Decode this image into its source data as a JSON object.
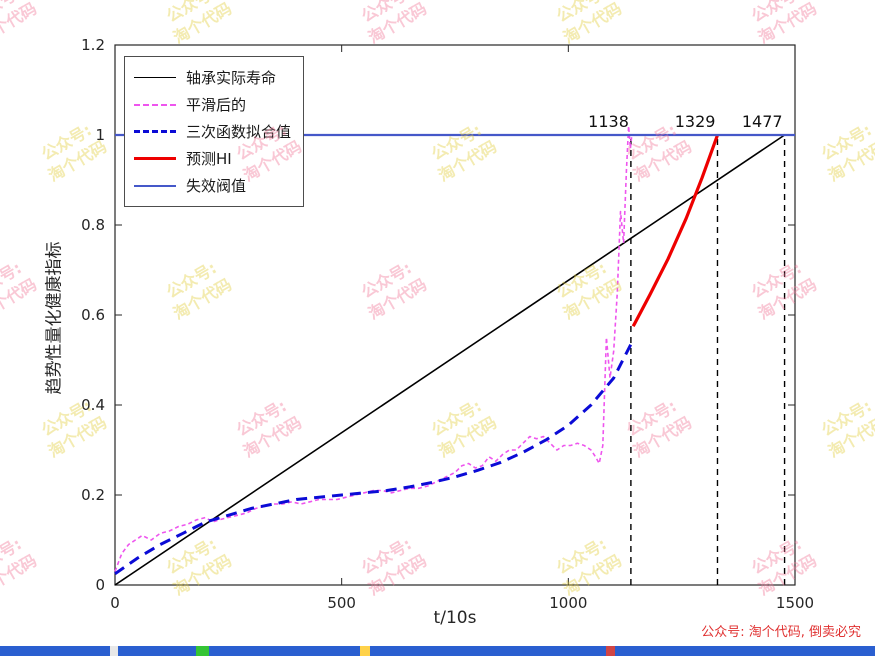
{
  "figure": {
    "title": ""
  },
  "legend": {
    "items": [
      {
        "label": "轴承实际寿命",
        "color": "#000000",
        "style": "solid",
        "weight": 1.5
      },
      {
        "label": "平滑后的",
        "color": "#ee55ee",
        "style": "dashed",
        "weight": 2
      },
      {
        "label": "三次函数拟合值",
        "color": "#0b0bd6",
        "style": "dashed",
        "weight": 3
      },
      {
        "label": "预测HI",
        "color": "#ee0000",
        "style": "solid",
        "weight": 3
      },
      {
        "label": "失效阀值",
        "color": "#4558c9",
        "style": "solid",
        "weight": 2
      }
    ]
  },
  "chart_data": {
    "type": "line",
    "title": "",
    "xlabel": "t/10s",
    "ylabel": "趋势性量化健康指标",
    "xlim": [
      0,
      1500
    ],
    "ylim": [
      0,
      1.2
    ],
    "xticks": [
      0,
      500,
      1000,
      1500
    ],
    "yticks": [
      0,
      0.2,
      0.4,
      0.6,
      0.8,
      1,
      1.2
    ],
    "grid": false,
    "legend_position": "top-left",
    "axis_color": "#262626",
    "series": [
      {
        "name": "轴承实际寿命",
        "color": "#000000",
        "width": 1.6,
        "dash": "",
        "points": [
          [
            0,
            0.0
          ],
          [
            1477,
            1.0
          ]
        ]
      },
      {
        "name": "平滑后的",
        "color": "#ee55ee",
        "width": 1.6,
        "dash": "4 3",
        "points": [
          [
            0,
            0.03
          ],
          [
            15,
            0.07
          ],
          [
            30,
            0.09
          ],
          [
            45,
            0.1
          ],
          [
            60,
            0.11
          ],
          [
            80,
            0.1
          ],
          [
            100,
            0.115
          ],
          [
            120,
            0.12
          ],
          [
            140,
            0.13
          ],
          [
            160,
            0.135
          ],
          [
            180,
            0.145
          ],
          [
            200,
            0.15
          ],
          [
            215,
            0.14
          ],
          [
            230,
            0.145
          ],
          [
            250,
            0.15
          ],
          [
            270,
            0.155
          ],
          [
            290,
            0.16
          ],
          [
            310,
            0.17
          ],
          [
            330,
            0.175
          ],
          [
            350,
            0.18
          ],
          [
            370,
            0.18
          ],
          [
            390,
            0.185
          ],
          [
            410,
            0.18
          ],
          [
            430,
            0.185
          ],
          [
            450,
            0.19
          ],
          [
            470,
            0.19
          ],
          [
            490,
            0.19
          ],
          [
            510,
            0.195
          ],
          [
            530,
            0.2
          ],
          [
            550,
            0.205
          ],
          [
            570,
            0.21
          ],
          [
            590,
            0.21
          ],
          [
            610,
            0.205
          ],
          [
            630,
            0.21
          ],
          [
            650,
            0.215
          ],
          [
            670,
            0.215
          ],
          [
            690,
            0.22
          ],
          [
            710,
            0.23
          ],
          [
            730,
            0.24
          ],
          [
            750,
            0.25
          ],
          [
            765,
            0.265
          ],
          [
            780,
            0.27
          ],
          [
            795,
            0.26
          ],
          [
            810,
            0.265
          ],
          [
            825,
            0.285
          ],
          [
            840,
            0.275
          ],
          [
            855,
            0.29
          ],
          [
            870,
            0.3
          ],
          [
            885,
            0.3
          ],
          [
            900,
            0.315
          ],
          [
            915,
            0.33
          ],
          [
            930,
            0.325
          ],
          [
            945,
            0.33
          ],
          [
            960,
            0.315
          ],
          [
            975,
            0.3
          ],
          [
            990,
            0.31
          ],
          [
            1005,
            0.31
          ],
          [
            1020,
            0.315
          ],
          [
            1035,
            0.31
          ],
          [
            1050,
            0.3
          ],
          [
            1060,
            0.285
          ],
          [
            1068,
            0.27
          ],
          [
            1076,
            0.31
          ],
          [
            1084,
            0.55
          ],
          [
            1092,
            0.46
          ],
          [
            1100,
            0.52
          ],
          [
            1108,
            0.65
          ],
          [
            1115,
            0.83
          ],
          [
            1122,
            0.76
          ],
          [
            1128,
            0.92
          ],
          [
            1133,
            1.02
          ],
          [
            1137,
            0.97
          ],
          [
            1140,
            1.0
          ]
        ]
      },
      {
        "name": "三次函数拟合值",
        "color": "#0b0bd6",
        "width": 3,
        "dash": "11 7",
        "points": [
          [
            0,
            0.025
          ],
          [
            50,
            0.06
          ],
          [
            100,
            0.09
          ],
          [
            150,
            0.115
          ],
          [
            200,
            0.14
          ],
          [
            250,
            0.155
          ],
          [
            300,
            0.17
          ],
          [
            350,
            0.18
          ],
          [
            400,
            0.19
          ],
          [
            450,
            0.195
          ],
          [
            500,
            0.2
          ],
          [
            550,
            0.205
          ],
          [
            600,
            0.21
          ],
          [
            650,
            0.218
          ],
          [
            700,
            0.228
          ],
          [
            750,
            0.24
          ],
          [
            800,
            0.255
          ],
          [
            850,
            0.272
          ],
          [
            900,
            0.295
          ],
          [
            950,
            0.322
          ],
          [
            1000,
            0.355
          ],
          [
            1050,
            0.4
          ],
          [
            1100,
            0.46
          ],
          [
            1143,
            0.545
          ]
        ]
      },
      {
        "name": "预测HI",
        "color": "#ee0000",
        "width": 3.2,
        "dash": "",
        "points": [
          [
            1143,
            0.575
          ],
          [
            1180,
            0.645
          ],
          [
            1220,
            0.725
          ],
          [
            1260,
            0.815
          ],
          [
            1295,
            0.905
          ],
          [
            1329,
            1.0
          ]
        ]
      }
    ],
    "threshold": {
      "name": "失效阀值",
      "y": 1.0,
      "color": "#4558c9",
      "width": 2.2
    },
    "vlines": [
      {
        "x": 1138,
        "label": "1138"
      },
      {
        "x": 1329,
        "label": "1329"
      },
      {
        "x": 1477,
        "label": "1477"
      }
    ]
  },
  "watermark": {
    "line1": "公众号:",
    "line2": "淘个代码",
    "pink_color": "#f27d9d",
    "yellow_color": "#e3cf3f"
  },
  "footer": {
    "notice": "公众号: 淘个代码, 倒卖必究",
    "color": "#e03131"
  }
}
